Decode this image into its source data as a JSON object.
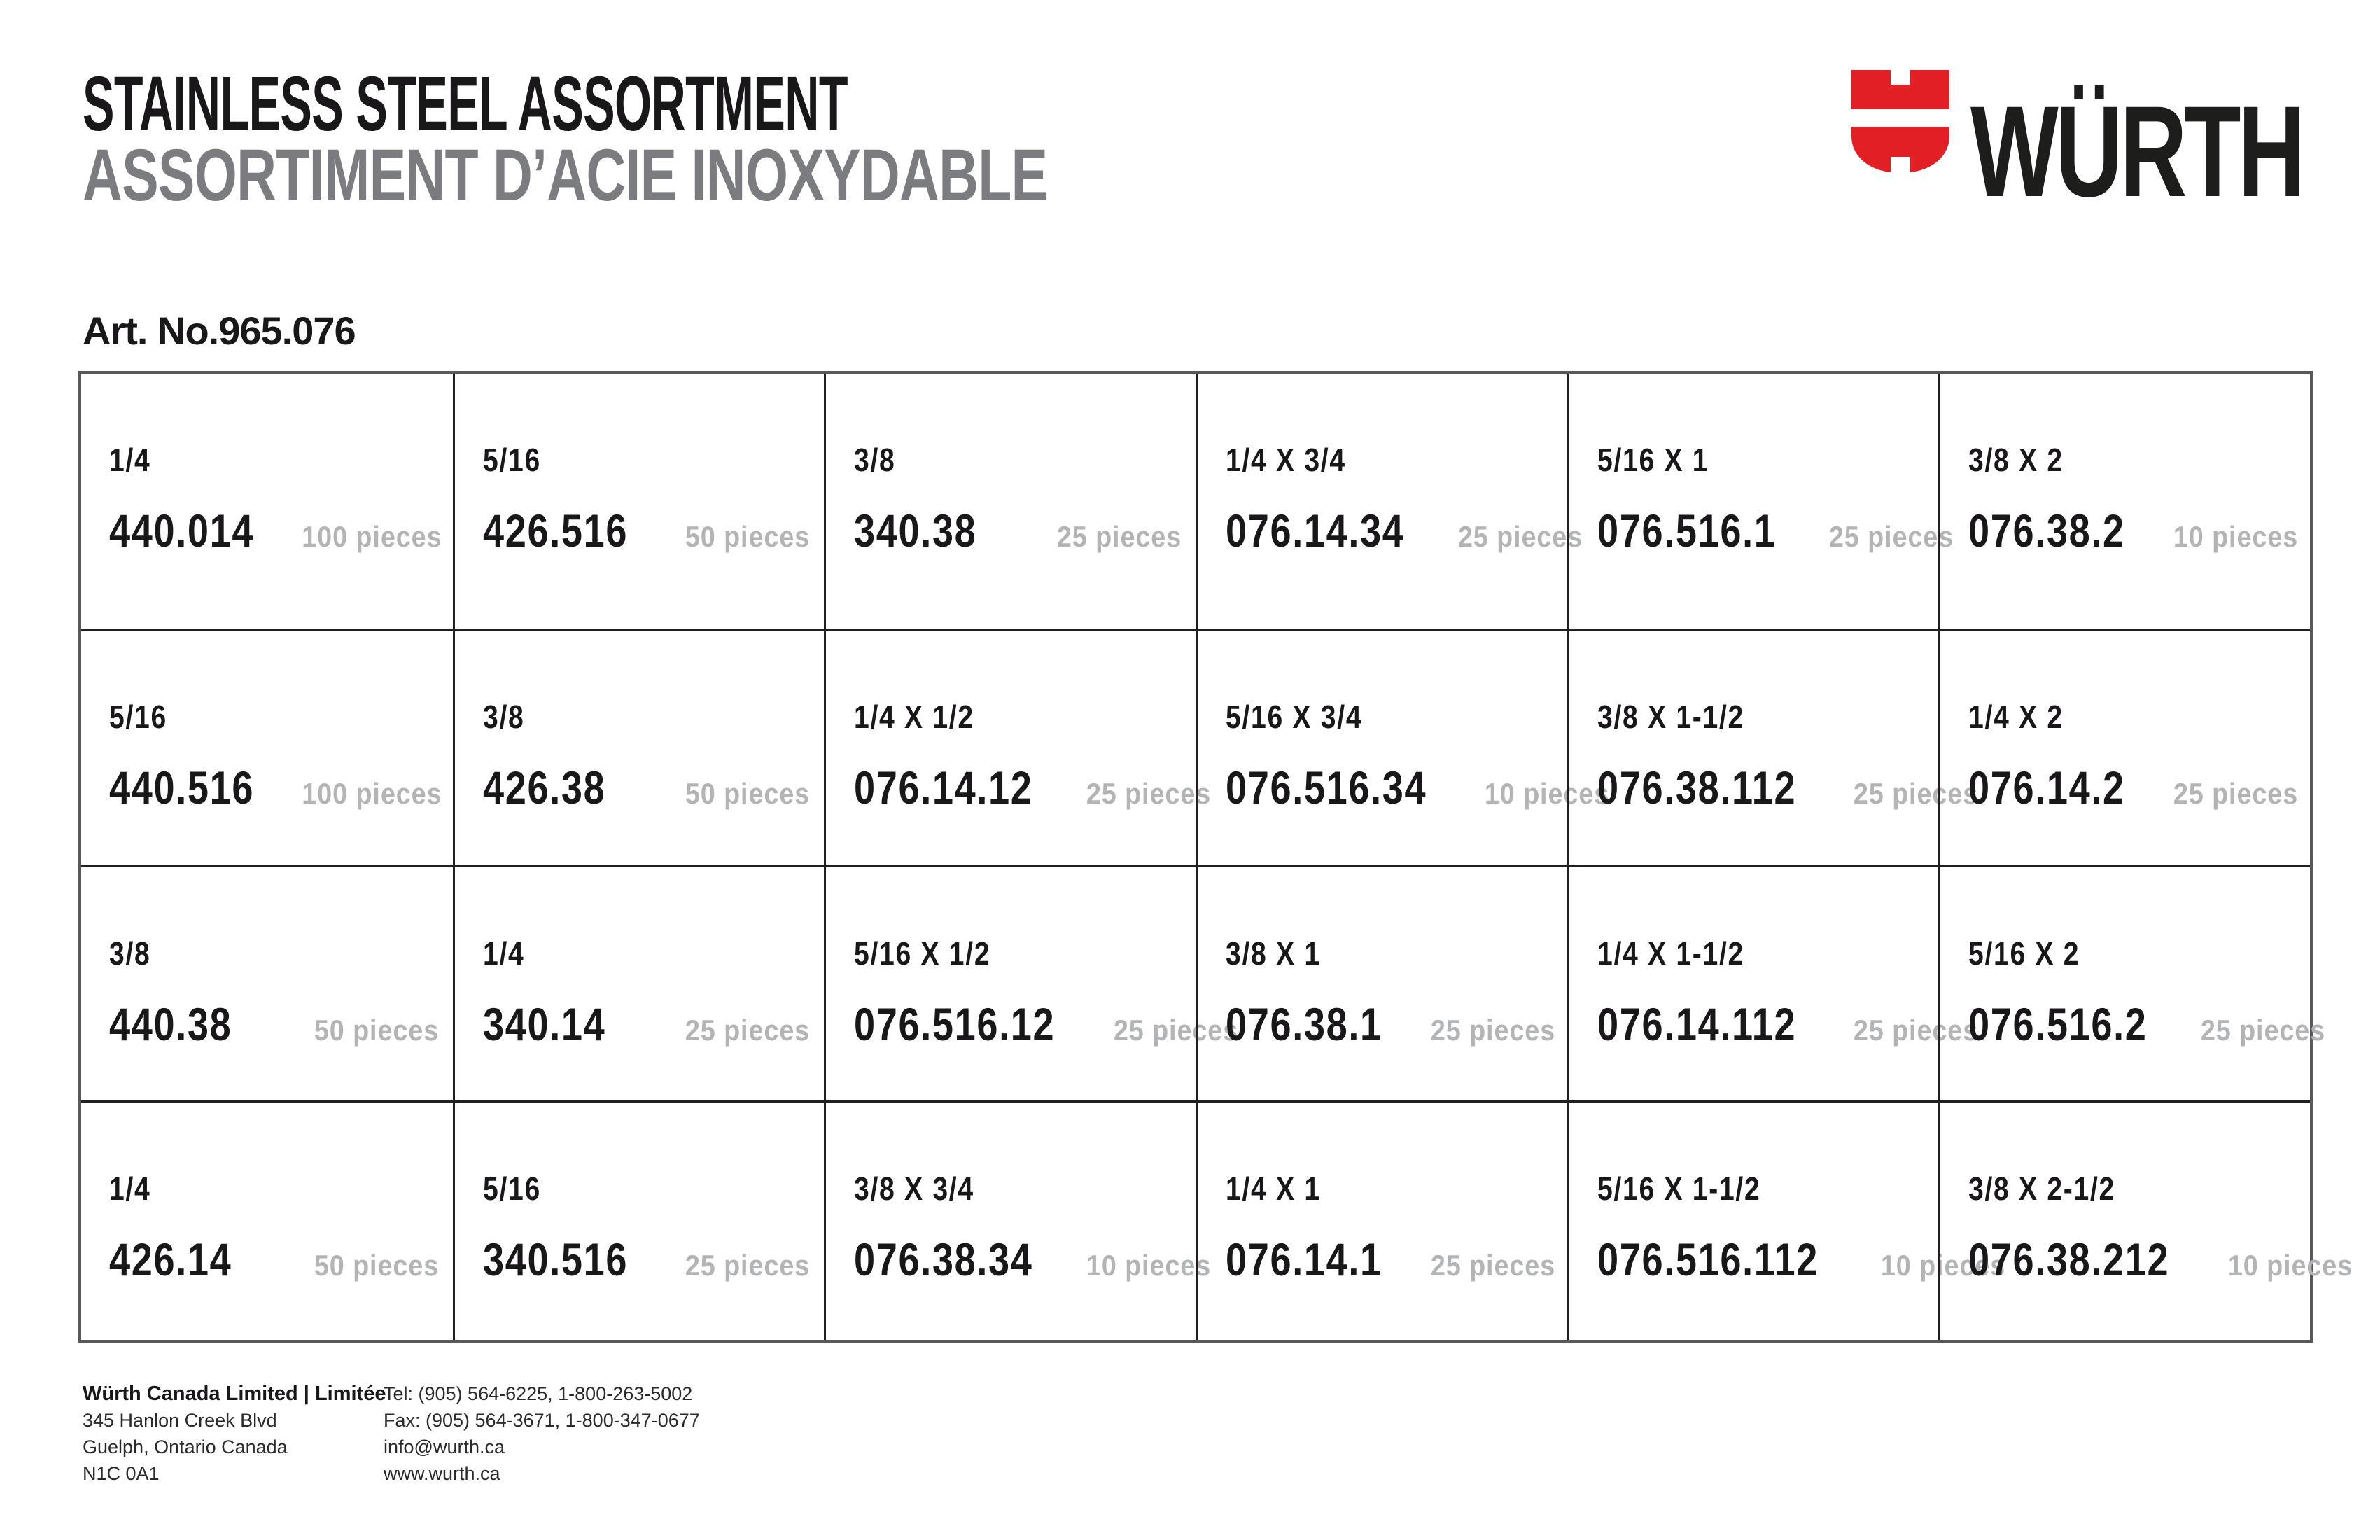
{
  "page": {
    "title_en": "STAINLESS STEEL ASSORTMENT",
    "title_fr": "ASSORTIMENT D’ACIE INOXYDABLE",
    "art_no": "Art. No.965.076"
  },
  "brand": {
    "name": "WÜRTH",
    "logo_icon": "wurth-shield-icon"
  },
  "colors": {
    "brand_red": "#e31f26",
    "title_gray": "#7b7c7f",
    "quantity_gray": "#b3b4b6",
    "text_black": "#231f20"
  },
  "table": {
    "rows": [
      [
        {
          "size": "1/4",
          "part": "440.014",
          "qty": "100 pieces"
        },
        {
          "size": "5/16",
          "part": "426.516",
          "qty": "50 pieces"
        },
        {
          "size": "3/8",
          "part": "340.38",
          "qty": "25 pieces"
        },
        {
          "size": "1/4 X 3/4",
          "part": "076.14.34",
          "qty": "25 pieces"
        },
        {
          "size": "5/16 X 1",
          "part": "076.516.1",
          "qty": "25 pieces"
        },
        {
          "size": "3/8 X 2",
          "part": "076.38.2",
          "qty": "10 pieces"
        }
      ],
      [
        {
          "size": "5/16",
          "part": "440.516",
          "qty": "100 pieces"
        },
        {
          "size": "3/8",
          "part": "426.38",
          "qty": "50 pieces"
        },
        {
          "size": "1/4 X 1/2",
          "part": "076.14.12",
          "qty": "25 pieces"
        },
        {
          "size": "5/16 X 3/4",
          "part": "076.516.34",
          "qty": "10 pieces"
        },
        {
          "size": "3/8 X 1-1/2",
          "part": "076.38.112",
          "qty": "25 pieces"
        },
        {
          "size": "1/4 X 2",
          "part": "076.14.2",
          "qty": "25 pieces"
        }
      ],
      [
        {
          "size": "3/8",
          "part": "440.38",
          "qty": "50 pieces"
        },
        {
          "size": "1/4",
          "part": "340.14",
          "qty": "25 pieces"
        },
        {
          "size": "5/16 X 1/2",
          "part": "076.516.12",
          "qty": "25 pieces"
        },
        {
          "size": "3/8 X 1",
          "part": "076.38.1",
          "qty": "25 pieces"
        },
        {
          "size": "1/4 X 1-1/2",
          "part": "076.14.112",
          "qty": "25 pieces"
        },
        {
          "size": "5/16 X 2",
          "part": "076.516.2",
          "qty": "25 pieces"
        }
      ],
      [
        {
          "size": "1/4",
          "part": "426.14",
          "qty": "50 pieces"
        },
        {
          "size": "5/16",
          "part": "340.516",
          "qty": "25 pieces"
        },
        {
          "size": "3/8 X 3/4",
          "part": "076.38.34",
          "qty": "10 pieces"
        },
        {
          "size": "1/4 X 1",
          "part": "076.14.1",
          "qty": "25 pieces"
        },
        {
          "size": "5/16 X 1-1/2",
          "part": "076.516.112",
          "qty": "10 pieces"
        },
        {
          "size": "3/8 X 2-1/2",
          "part": "076.38.212",
          "qty": "10 pieces"
        }
      ]
    ]
  },
  "footer": {
    "company": "Würth Canada Limited | Limitée",
    "address_lines": [
      "345 Hanlon Creek Blvd",
      "Guelph, Ontario Canada",
      "N1C 0A1"
    ],
    "contact_lines": [
      "Tel: (905) 564-6225, 1-800-263-5002",
      "Fax: (905) 564-3671, 1-800-347-0677",
      "info@wurth.ca",
      "www.wurth.ca"
    ]
  }
}
